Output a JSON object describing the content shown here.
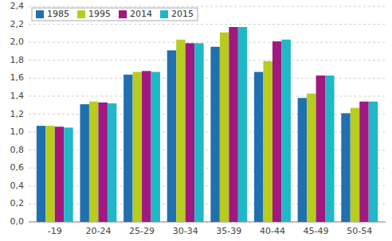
{
  "chart_data": {
    "type": "bar",
    "categories": [
      "-19",
      "20-24",
      "25-29",
      "30-34",
      "35-39",
      "40-44",
      "45-49",
      "50-54"
    ],
    "series": [
      {
        "name": "1985",
        "color": "#2070b0",
        "values": [
          1.07,
          1.31,
          1.64,
          1.91,
          1.95,
          1.67,
          1.38,
          1.21
        ]
      },
      {
        "name": "1995",
        "color": "#b8cc20",
        "values": [
          1.07,
          1.34,
          1.67,
          2.03,
          2.11,
          1.79,
          1.43,
          1.27
        ]
      },
      {
        "name": "2014",
        "color": "#a01880",
        "values": [
          1.06,
          1.33,
          1.68,
          1.99,
          2.17,
          2.01,
          1.63,
          1.34
        ]
      },
      {
        "name": "2015",
        "color": "#20b8c8",
        "values": [
          1.05,
          1.32,
          1.67,
          1.99,
          2.17,
          2.03,
          1.63,
          1.34
        ]
      }
    ],
    "ylim": [
      0.0,
      2.4
    ],
    "yticks": [
      {
        "value": 0.0,
        "label": "0,0"
      },
      {
        "value": 0.2,
        "label": "0,2"
      },
      {
        "value": 0.4,
        "label": "0,4"
      },
      {
        "value": 0.6,
        "label": "0,6"
      },
      {
        "value": 0.8,
        "label": "0,8"
      },
      {
        "value": 1.0,
        "label": "1,0"
      },
      {
        "value": 1.2,
        "label": "1,2"
      },
      {
        "value": 1.4,
        "label": "1,4"
      },
      {
        "value": 1.6,
        "label": "1,6"
      },
      {
        "value": 1.8,
        "label": "1,8"
      },
      {
        "value": 2.0,
        "label": "2,0"
      },
      {
        "value": 2.2,
        "label": "2,2"
      },
      {
        "value": 2.4,
        "label": "2,4"
      }
    ],
    "grid": true,
    "legend": "upper-left"
  }
}
